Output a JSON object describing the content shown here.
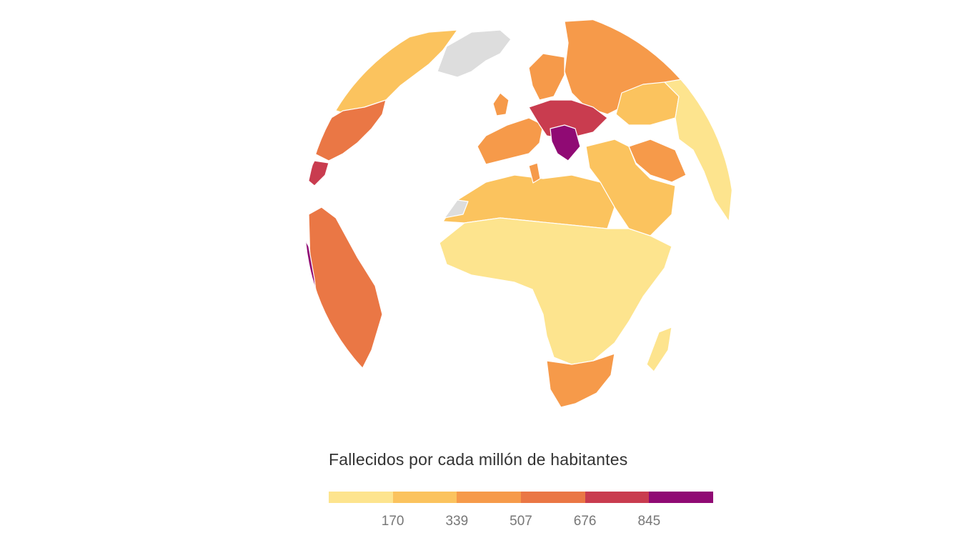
{
  "map": {
    "projection": "orthographic",
    "center": "África / Europa",
    "no_data_color": "#dddddd",
    "regions": [
      {
        "name": "Groenlandia",
        "bin": "no-data"
      },
      {
        "name": "Canadá",
        "bin": 1
      },
      {
        "name": "Estados Unidos",
        "bin": 3
      },
      {
        "name": "México",
        "bin": 4
      },
      {
        "name": "Perú",
        "bin": 5
      },
      {
        "name": "Brasil",
        "bin": 3
      },
      {
        "name": "Argentina",
        "bin": 3
      },
      {
        "name": "Rusia",
        "bin": 2
      },
      {
        "name": "Europa Occidental",
        "bin": 2
      },
      {
        "name": "Europa Central y del Este",
        "bin": 4
      },
      {
        "name": "Bulgaria / Hungría",
        "bin": 5
      },
      {
        "name": "Kazajistán",
        "bin": 1
      },
      {
        "name": "Mongolia / China",
        "bin": 0
      },
      {
        "name": "Irán",
        "bin": 2
      },
      {
        "name": "Oriente Medio",
        "bin": 1
      },
      {
        "name": "Norte de África",
        "bin": 1
      },
      {
        "name": "Túnez",
        "bin": 2
      },
      {
        "name": "África subsahariana",
        "bin": 0
      },
      {
        "name": "Sudáfrica",
        "bin": 2
      },
      {
        "name": "Madagascar",
        "bin": 0
      }
    ]
  },
  "legend": {
    "title": "Fallecidos por cada millón de habitantes",
    "colors": [
      "#fde48e",
      "#fbc35e",
      "#f69a4a",
      "#ea7745",
      "#c93c4f",
      "#900a74"
    ],
    "thresholds": [
      "170",
      "339",
      "507",
      "676",
      "845"
    ]
  }
}
